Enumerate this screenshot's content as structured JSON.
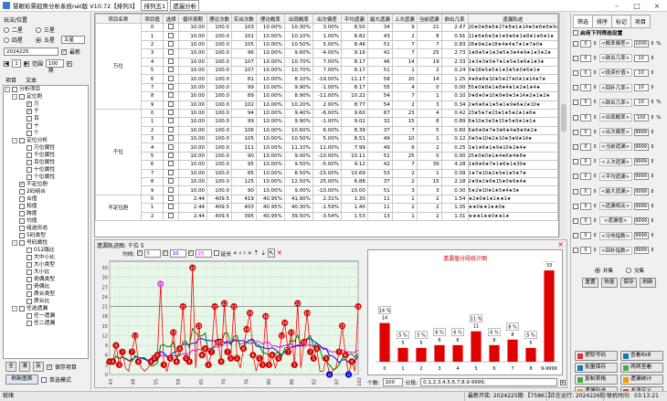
{
  "app": {
    "title": "慧眼彩票趋势分析系统net版 V10.72【排列3】",
    "breadcrumb": [
      "排列五1",
      "遗漏分析"
    ]
  },
  "left": {
    "group_title": "玩法/位置",
    "radios": [
      {
        "label": "二星",
        "on": false
      },
      {
        "label": "三星",
        "on": false
      },
      {
        "label": "四星",
        "on": false
      },
      {
        "label": "五星",
        "on": true
      }
    ],
    "mode_select": "五星",
    "date": "2024225",
    "latest_label": "最新",
    "period_num": "1",
    "range_label": "范围",
    "range_value": "100期",
    "tab_items": "项目",
    "tab_text": "文本",
    "tree": [
      {
        "label": "分析项目",
        "level": 0,
        "box": true,
        "chk": false,
        "exp": "-"
      },
      {
        "label": "定位胆",
        "level": 1,
        "box": true,
        "chk": false,
        "exp": "-"
      },
      {
        "label": "万",
        "level": 2,
        "box": true,
        "chk": true
      },
      {
        "label": "千",
        "level": 2,
        "box": true,
        "chk": true
      },
      {
        "label": "百",
        "level": 2,
        "box": true,
        "chk": false
      },
      {
        "label": "十",
        "level": 2,
        "box": true,
        "chk": false
      },
      {
        "label": "个",
        "level": 2,
        "box": true,
        "chk": false
      },
      {
        "label": "定位分析",
        "level": 1,
        "box": true,
        "chk": false,
        "exp": "-"
      },
      {
        "label": "万位属性",
        "level": 2,
        "box": true,
        "chk": false
      },
      {
        "label": "千位属性",
        "level": 2,
        "box": true,
        "chk": false
      },
      {
        "label": "百位属性",
        "level": 2,
        "box": true,
        "chk": false
      },
      {
        "label": "十位属性",
        "level": 2,
        "box": true,
        "chk": false
      },
      {
        "label": "个位属性",
        "level": 2,
        "box": true,
        "chk": false
      },
      {
        "label": "不定位胆",
        "level": 1,
        "box": true,
        "chk": true
      },
      {
        "label": "2码组合",
        "level": 1,
        "box": true,
        "chk": false
      },
      {
        "label": "合值",
        "level": 1,
        "box": true,
        "chk": false
      },
      {
        "label": "和值",
        "level": 1,
        "box": true,
        "chk": false
      },
      {
        "label": "跨度",
        "level": 1,
        "box": true,
        "chk": false
      },
      {
        "label": "均值",
        "level": 1,
        "box": true,
        "chk": false
      },
      {
        "label": "组选形态",
        "level": 1,
        "box": true,
        "chk": false
      },
      {
        "label": "5码类型",
        "level": 1,
        "box": true,
        "chk": false
      },
      {
        "label": "号码属性",
        "level": 1,
        "box": true,
        "chk": false,
        "exp": "-"
      },
      {
        "label": "012路比",
        "level": 2,
        "box": true,
        "chk": false
      },
      {
        "label": "大中小比",
        "level": 2,
        "box": true,
        "chk": false
      },
      {
        "label": "大小类型",
        "level": 2,
        "box": true,
        "chk": false
      },
      {
        "label": "大小比",
        "level": 2,
        "box": true,
        "chk": false
      },
      {
        "label": "奇偶类型",
        "level": 2,
        "box": true,
        "chk": false
      },
      {
        "label": "奇偶比",
        "level": 2,
        "box": true,
        "chk": false
      },
      {
        "label": "质合类型",
        "level": 2,
        "box": true,
        "chk": false
      },
      {
        "label": "质合比",
        "level": 2,
        "box": true,
        "chk": false
      },
      {
        "label": "任选遗漏",
        "level": 1,
        "box": true,
        "chk": false,
        "exp": "-"
      },
      {
        "label": "任一遗漏",
        "level": 2,
        "box": true,
        "chk": false
      },
      {
        "label": "任二遗漏",
        "level": 2,
        "box": true,
        "chk": false
      }
    ],
    "buttons": {
      "all": "全",
      "clear": "清",
      "invert": "反",
      "save_items": "保存项目",
      "refresh": "刷新图表",
      "single": "单选模式"
    }
  },
  "table": {
    "headers": [
      "项目名称",
      "项目值",
      "选择",
      "循环周期",
      "理论次数",
      "实出次数",
      "理论概率",
      "出现概率",
      "出次偏差",
      "平均遗漏",
      "最大遗漏",
      "上次遗漏",
      "当前遗漏",
      "欲出几率",
      "遗漏轨迹"
    ],
    "groups": [
      {
        "name": "万位",
        "start": 0,
        "span": 10
      },
      {
        "name": "千位",
        "start": 10,
        "span": 10
      },
      {
        "name": "不定位胆",
        "start": 20,
        "span": 3
      }
    ],
    "rows": [
      [
        "0",
        "10.00",
        "100.0",
        "103",
        "10.00%",
        "10.30%",
        "3.00%",
        "8.50",
        "34",
        "9",
        "21",
        "2.47",
        "20★0★8★6★27★8★1★14★0★8★8★9★"
      ],
      [
        "1",
        "10.00",
        "100.0",
        "101",
        "10.00%",
        "10.10%",
        "1.00%",
        "8.82",
        "43",
        "2",
        "8",
        "0.91",
        "11★6★6★3★1★9★6★1★8★1★6★1★"
      ],
      [
        "2",
        "10.00",
        "100.0",
        "105",
        "10.00%",
        "10.50%",
        "5.00%",
        "8.46",
        "51",
        "7",
        "7",
        "0.83",
        "28★9★2★18★4★4★7★1★7★0★"
      ],
      [
        "3",
        "10.00",
        "100.0",
        "96",
        "10.00%",
        "9.60%",
        "-4.00%",
        "9.16",
        "41",
        "7",
        "25",
        "2.73",
        "1★8★5★1★3★5★3★4★9★1★3★2★"
      ],
      [
        "4",
        "10.00",
        "100.0",
        "107",
        "10.00%",
        "10.70%",
        "7.00%",
        "8.17",
        "46",
        "14",
        "19",
        "2.33",
        "1★3★3★5★7★1★5★3★6★1★3★"
      ],
      [
        "5",
        "10.00",
        "100.0",
        "107",
        "10.00%",
        "10.70%",
        "7.00%",
        "8.17",
        "51",
        "1",
        "2",
        "0.24",
        "3★18★5★5★1★3★5★0★6★1★"
      ],
      [
        "6",
        "10.00",
        "100.0",
        "81",
        "10.00%",
        "8.10%",
        "-19.00%",
        "11.17",
        "58",
        "20",
        "14",
        "1.25",
        "4★8★8★10★5★27★0★1★14★7★"
      ],
      [
        "7",
        "10.00",
        "100.0",
        "99",
        "10.00%",
        "9.90%",
        "-1.00%",
        "8.17",
        "55",
        "4",
        "0",
        "0.00",
        "55★0★8★1★8★4★1★2★1★4★"
      ],
      [
        "8",
        "10.00",
        "100.0",
        "89",
        "10.00%",
        "8.90%",
        "-11.00%",
        "10.22",
        "54",
        "7",
        "1",
        "0.10",
        "0★8★0★10★9★9★3★14★2★1★2★"
      ],
      [
        "9",
        "10.00",
        "100.0",
        "102",
        "10.00%",
        "10.20%",
        "2.00%",
        "8.77",
        "54",
        "2",
        "3",
        "0.34",
        "2★6★6★1★5★1★9★6★2★10★"
      ],
      [
        "0",
        "10.00",
        "100.0",
        "94",
        "10.00%",
        "9.40%",
        "-6.00%",
        "9.60",
        "67",
        "23",
        "4",
        "0.42",
        "23★5★7★23★1★5★2★1★6★"
      ],
      [
        "1",
        "10.00",
        "100.0",
        "99",
        "10.00%",
        "9.90%",
        "-1.00%",
        "9.02",
        "32",
        "15",
        "8",
        "0.89",
        "6★10★3★3★15★5★9★1★1★"
      ],
      [
        "2",
        "10.00",
        "100.0",
        "106",
        "10.00%",
        "10.60%",
        "6.00%",
        "8.39",
        "37",
        "7",
        "5",
        "0.60",
        "6★6★9★7★3★6★4★8★9★2★"
      ],
      [
        "3",
        "10.00",
        "100.0",
        "105",
        "10.00%",
        "10.50%",
        "5.00%",
        "8.51",
        "49",
        "10",
        "1",
        "0.12",
        "0★5★10★2★10★3★9★14★"
      ],
      [
        "4",
        "10.00",
        "100.0",
        "111",
        "10.00%",
        "11.10%",
        "11.00%",
        "7.99",
        "49",
        "6",
        "2",
        "0.25",
        "1★1★6★1★9★10★2★4★"
      ],
      [
        "5",
        "10.00",
        "100.0",
        "90",
        "10.00%",
        "9.00%",
        "-10.00%",
        "10.11",
        "51",
        "25",
        "0",
        "0.00",
        "25★0★0★1★4★6★4★8★"
      ],
      [
        "6",
        "10.00",
        "100.0",
        "95",
        "10.00%",
        "9.50%",
        "-5.00%",
        "9.12",
        "42",
        "7",
        "39",
        "4.28",
        "1★8★6★7★1★6★1★39★"
      ],
      [
        "7",
        "10.00",
        "100.0",
        "85",
        "10.00%",
        "8.50%",
        "-15.00%",
        "10.69",
        "53",
        "2",
        "1",
        "0.09",
        "1★7★10★2★9★1★5★7★"
      ],
      [
        "8",
        "10.00",
        "100.0",
        "125",
        "10.00%",
        "12.50%",
        "25.00%",
        "6.88",
        "37",
        "2",
        "15",
        "2.18",
        "2★9★2★6★15★0★6★4★"
      ],
      [
        "9",
        "10.00",
        "100.0",
        "90",
        "10.00%",
        "9.00%",
        "-10.00%",
        "10.00",
        "51",
        "3",
        "3",
        "0.30",
        "5★2★10★1★5★4★3★"
      ],
      [
        "0",
        "2.44",
        "409.5",
        "419",
        "40.95%",
        "41.90%",
        "2.31%",
        "1.30",
        "11",
        "1",
        "2",
        "1.54",
        "★2★0★1★1★★1★"
      ],
      [
        "1",
        "2.44",
        "409.5",
        "403",
        "40.95%",
        "40.30%",
        "-1.59%",
        "1.40",
        "11",
        "2",
        "2",
        "1.35",
        "★★0★★1★★0★"
      ],
      [
        "2",
        "2.44",
        "409.5",
        "395",
        "40.95%",
        "39.50%",
        "-3.54%",
        "1.53",
        "13",
        "1",
        "2",
        "1.31",
        "★★★1★★0★★1★"
      ]
    ]
  },
  "chart": {
    "title": "遗漏轨迹图: 千位 5",
    "toolbar": {
      "trend_label": "均线:",
      "ma1": "5",
      "ma2": "10",
      "ma3": "25",
      "extend": "延长"
    },
    "x_labels": [
      "43",
      "49",
      "55",
      "59",
      "65",
      "70",
      "76",
      "80",
      "86",
      "92",
      "97",
      "102"
    ],
    "y_ticks": [
      "0",
      "3",
      "6",
      "9",
      "12",
      "15",
      "18",
      "21",
      "24",
      "27",
      "30",
      "33"
    ],
    "values": [
      4,
      4,
      9,
      3,
      7,
      2,
      1,
      7,
      12,
      4,
      2,
      1,
      2,
      4,
      5,
      6,
      28,
      3,
      1,
      5,
      13,
      4,
      8,
      21,
      5,
      4,
      33,
      2,
      15,
      6,
      8,
      3,
      7,
      21,
      10,
      4,
      22,
      7,
      5,
      21,
      5,
      2,
      8,
      14,
      19,
      6,
      1,
      5,
      3,
      18,
      3,
      6,
      2,
      5,
      12,
      16,
      7,
      13,
      3,
      22,
      2,
      10,
      19,
      7,
      5,
      8,
      1,
      1,
      5,
      0,
      1,
      2,
      7,
      15,
      6,
      0,
      4,
      1,
      21
    ],
    "ma_levels": {
      "ma5": 5.8,
      "ma10": 6.6,
      "ma25": 6.9
    },
    "legend_colors": {
      "ma5": "#008000",
      "ma10": "#0000ff",
      "ma25": "#ff00ff",
      "line": "#ff0000"
    }
  },
  "dist": {
    "title": "遗漏值分段统计图",
    "bars": [
      {
        "cat": "0",
        "pct": "14 %",
        "n": 14
      },
      {
        "cat": "1",
        "pct": "5 %",
        "n": 5
      },
      {
        "cat": "2",
        "pct": "5 %",
        "n": 5
      },
      {
        "cat": "3",
        "pct": "6 %",
        "n": 6
      },
      {
        "cat": "4",
        "pct": "6 %",
        "n": 6
      },
      {
        "cat": "5",
        "pct": "11 %",
        "n": 11
      },
      {
        "cat": "6",
        "pct": "6 %",
        "n": 6
      },
      {
        "cat": "7",
        "pct": "8 %",
        "n": 8
      },
      {
        "cat": "8",
        "pct": "5 %",
        "n": 5
      },
      {
        "cat": "9-9999",
        "pct": "33 %",
        "n": 33
      }
    ],
    "ymax": 35,
    "count_label": "个数:",
    "count_value": "100",
    "segment_label": "分段:",
    "segment_value": "0,1,2,3,4,5,6,7,8,9-9999,"
  },
  "right": {
    "tabs": [
      "筛选",
      "排序",
      "标记",
      "项目"
    ],
    "enable_label": "启用下列筛选设置",
    "filters": [
      {
        "v1": "0",
        "label": "<概率偏差>",
        "v2": "1000",
        "unit": "%"
      },
      {
        "v1": "0",
        "label": "<欲出几率>",
        "v2": "10",
        "unit": ""
      },
      {
        "v1": "0",
        "label": "<投资价值>",
        "v2": "10",
        "unit": ""
      },
      {
        "v1": "0",
        "label": "<回补几率>",
        "v2": "10",
        "unit": ""
      },
      {
        "v1": "0",
        "label": "<欲出几率>",
        "v2": "10",
        "unit": "%"
      },
      {
        "v1": "0",
        "label": "<出现概率>",
        "v2": "100",
        "unit": "%"
      },
      {
        "v1": "0",
        "label": "<出次偏差>",
        "v2": "9999",
        "unit": ""
      },
      {
        "v1": "0",
        "label": "<当前遗漏>",
        "v2": "9999",
        "unit": ""
      },
      {
        "v1": "0",
        "label": "<上次遗漏>",
        "v2": "9999",
        "unit": ""
      },
      {
        "v1": "0",
        "label": "<平均遗漏>",
        "v2": "9999",
        "unit": ""
      },
      {
        "v1": "0",
        "label": "<最大遗漏>",
        "v2": "9999",
        "unit": ""
      },
      {
        "v1": "0",
        "label": "<遗漏相关>",
        "v2": "9999",
        "unit": ""
      },
      {
        "v1": "0",
        "label": "<遗漏值>",
        "v2": "9999",
        "unit": ""
      },
      {
        "v1": "0",
        "label": "<冷热指数>",
        "v2": "9999",
        "unit": ""
      },
      {
        "v1": "0",
        "label": "<回补指数>",
        "v2": "9999",
        "unit": ""
      }
    ],
    "union": "并集",
    "intersect": "交集",
    "btns": [
      "重置",
      "恢复",
      "保存",
      "刷新"
    ],
    "actions": [
      [
        "提取号码",
        "查看8x8"
      ],
      [
        "批量保存",
        "两两查看"
      ],
      [
        "复制表格",
        "遗漏统计"
      ],
      [
        "遗漏轨迹",
        "术语定义"
      ]
    ]
  },
  "status": {
    "ready": "就绪",
    "start": "最新开奖: 2024225期 【75863】",
    "running": "正在运行: 2024226期",
    "clock_label": "联机时间:",
    "clock": "03:13:21"
  }
}
